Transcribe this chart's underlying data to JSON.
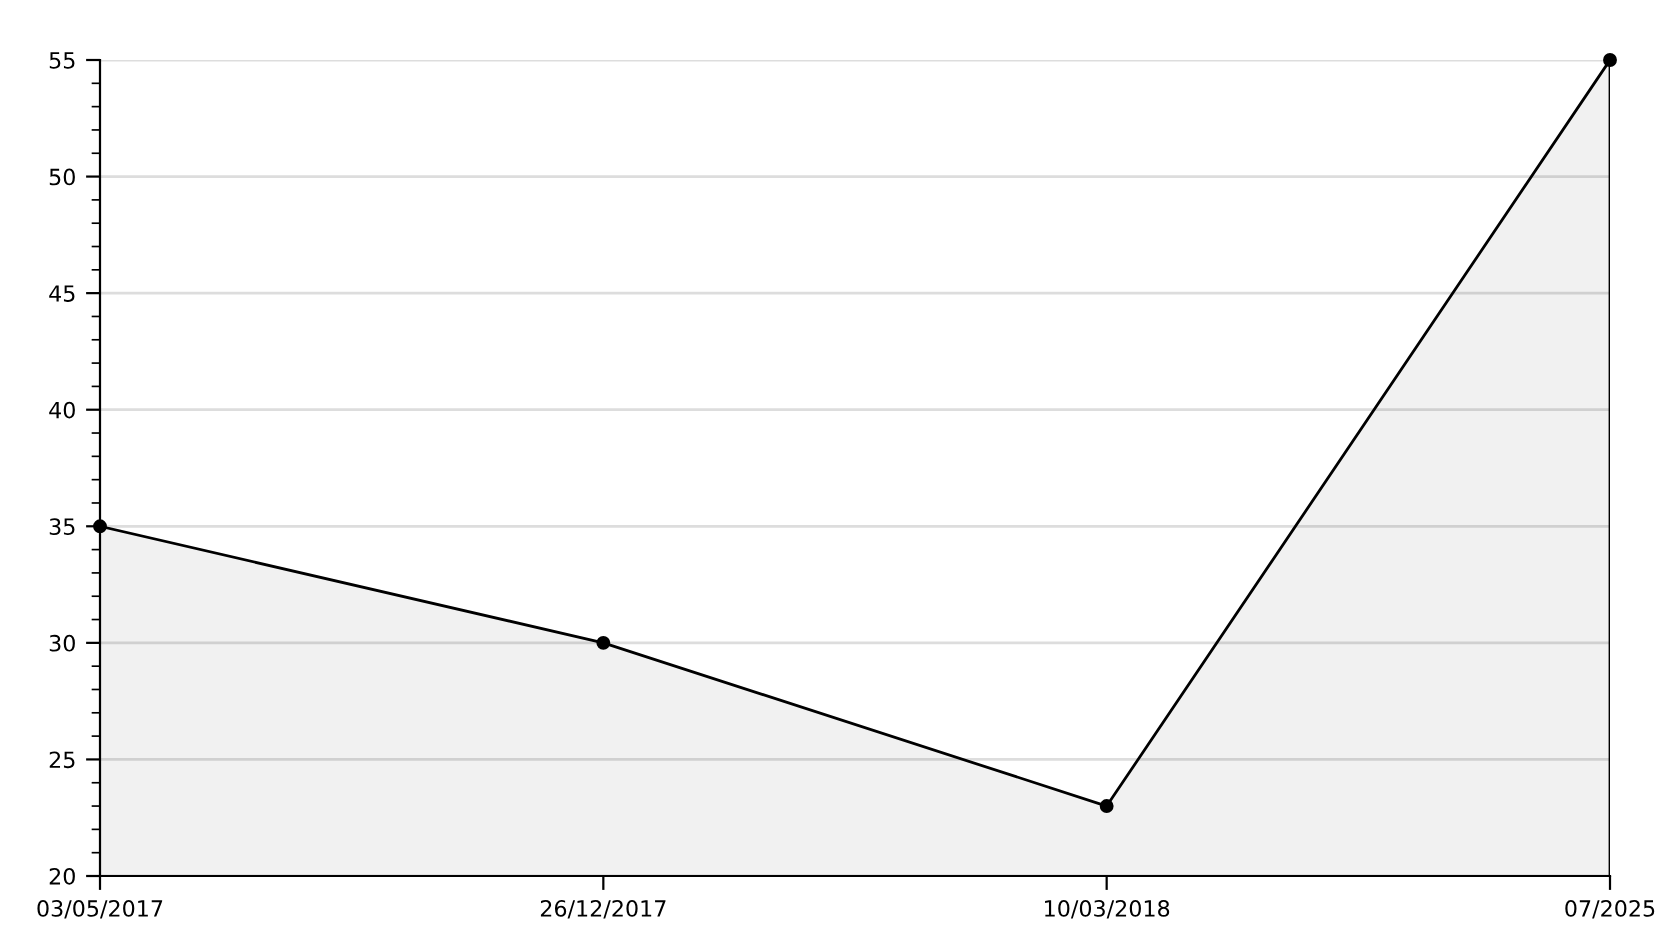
{
  "chart_data": {
    "type": "area",
    "categories": [
      "03/05/2017",
      "26/12/2017",
      "10/03/2018",
      "07/2025"
    ],
    "series": [
      {
        "color": "#000000",
        "values": [
          35,
          30,
          23,
          55
        ]
      }
    ],
    "ylim": [
      20,
      55
    ],
    "yticks": [
      20,
      25,
      30,
      35,
      40,
      45,
      50,
      55
    ],
    "grid": "y",
    "marker": "circle",
    "line_style": "solid"
  }
}
